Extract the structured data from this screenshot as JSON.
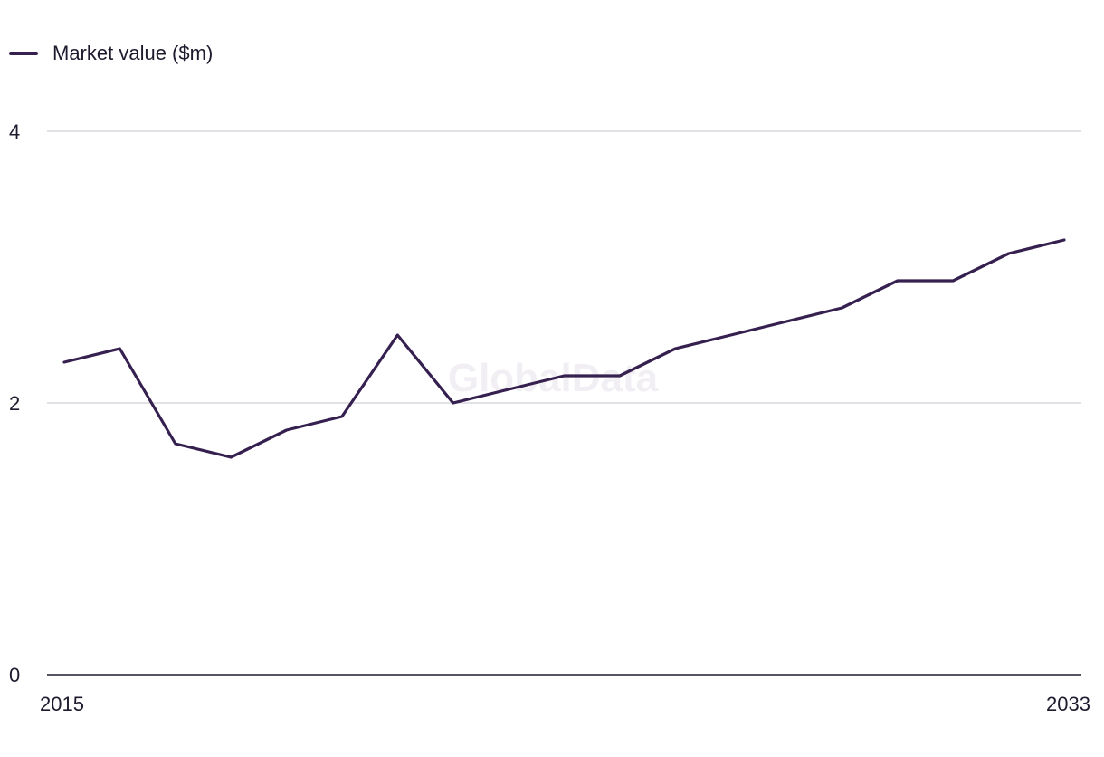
{
  "legend": {
    "series_label": "Market value ($m)"
  },
  "watermark": "GlobalData",
  "colors": {
    "series": "#35204f",
    "grid": "#d9d7de",
    "axis": "#1f1a2e"
  },
  "chart_data": {
    "type": "line",
    "title": "",
    "xlabel": "",
    "ylabel": "",
    "x": [
      2015,
      2016,
      2017,
      2018,
      2019,
      2020,
      2021,
      2022,
      2023,
      2024,
      2025,
      2026,
      2027,
      2028,
      2029,
      2030,
      2031,
      2032,
      2033
    ],
    "series": [
      {
        "name": "Market value ($m)",
        "values": [
          2.3,
          2.4,
          1.7,
          1.6,
          1.8,
          1.9,
          2.5,
          2.0,
          2.1,
          2.2,
          2.2,
          2.4,
          2.5,
          2.6,
          2.7,
          2.9,
          2.9,
          3.1,
          3.2
        ]
      }
    ],
    "ylim": [
      0,
      4
    ],
    "y_ticks": [
      "0",
      "2",
      "4"
    ],
    "x_tick_labels": [
      "2015",
      "2033"
    ],
    "grid": true,
    "legend_position": "top-left"
  }
}
